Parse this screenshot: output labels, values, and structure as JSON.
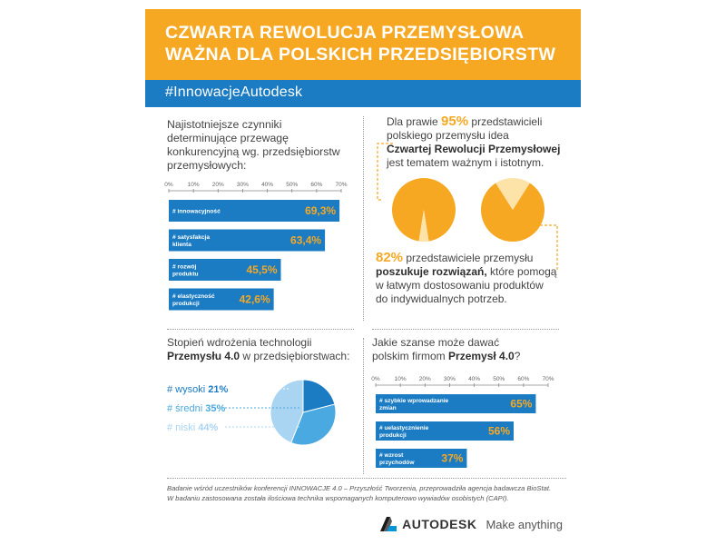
{
  "header": {
    "title_line1": "CZWARTA REWOLUCJA PRZEMYSŁOWA",
    "title_line2": "WAŻNA DLA POLSKICH PRZEDSIĘBIORSTW",
    "hashtag": "#InnowacjeAutodesk"
  },
  "section1": {
    "heading_lines": [
      "Najistotniejsze czynniki",
      "determinujące przewagę",
      "konkurencyjną wg. przedsiębiorstw",
      "przemysłowych:"
    ]
  },
  "section2": {
    "line1_pre": "Dla prawie ",
    "line1_pct": "95%",
    "line1_post": " przedstawicieli",
    "line2": "polskiego przemysłu idea",
    "line3_bold": "Czwartej Rewolucji Przemysłowej",
    "line4": "jest tematem ważnym i istotnym.",
    "pct2": "82%",
    "line5_post": " przedstawiciele przemysłu",
    "line6_bold": "poszukuje rozwiązań,",
    "line6_post": " które pomogą",
    "line7": "w łatwym dostosowaniu produktów",
    "line8": "do indywidualnych potrzeb."
  },
  "section3": {
    "heading_line1": "Stopień wdrożenia technologii",
    "heading_bold": "Przemysłu 4.0",
    "heading_post": " w przedsiębiorstwach:"
  },
  "section4": {
    "heading_line1": "Jakie szanse może dawać",
    "heading_pre": "polskim firmom ",
    "heading_bold": "Przemysł 4.0",
    "heading_post": "?"
  },
  "chart_data": [
    {
      "type": "bar",
      "orientation": "horizontal",
      "xlim": [
        0,
        70
      ],
      "ticks": [
        "0%",
        "10%",
        "20%",
        "30%",
        "40%",
        "50%",
        "60%",
        "70%"
      ],
      "categories": [
        "# innowacyjność",
        "# satysfakcja klienta",
        "# rozwój produktu",
        "# elastyczność produkcji"
      ],
      "category_lines": [
        [
          "# innowacyjność"
        ],
        [
          "# satysfakcja",
          "klienta"
        ],
        [
          "# rozwój",
          "produktu"
        ],
        [
          "# elastyczność",
          "produkcji"
        ]
      ],
      "values": [
        69.3,
        63.4,
        45.5,
        42.6
      ],
      "value_labels": [
        "69,3%",
        "63,4%",
        "45,5%",
        "42,6%"
      ],
      "bar_color": "#1b7cc3",
      "value_color": "#f7a823"
    },
    {
      "type": "pie",
      "values": [
        95,
        5
      ],
      "color": "#f7a823",
      "highlight_color": "#fde3a8"
    },
    {
      "type": "pie",
      "values": [
        82,
        18
      ],
      "color": "#f7a823",
      "highlight_color": "#fde3a8"
    },
    {
      "type": "pie",
      "categories": [
        "# wysoki",
        "# średni",
        "# niski"
      ],
      "values": [
        21,
        35,
        44
      ],
      "value_labels": [
        "21%",
        "35%",
        "44%"
      ],
      "colors": [
        "#1b7cc3",
        "#4aa9e0",
        "#a9d4f2"
      ]
    },
    {
      "type": "bar",
      "orientation": "horizontal",
      "xlim": [
        0,
        70
      ],
      "ticks": [
        "0%",
        "10%",
        "20%",
        "30%",
        "40%",
        "50%",
        "60%",
        "70%"
      ],
      "categories": [
        "# szybkie wprowadzanie zmian",
        "# uelastycznienie produkcji",
        "# wzrost przychodów"
      ],
      "category_lines": [
        [
          "# szybkie wprowadzanie",
          "zmian"
        ],
        [
          "# uelastycznienie",
          "produkcji"
        ],
        [
          "# wzrost",
          "przychodów"
        ]
      ],
      "values": [
        65,
        56,
        37
      ],
      "value_labels": [
        "65%",
        "56%",
        "37%"
      ],
      "bar_color": "#1b7cc3",
      "value_color": "#f7a823"
    }
  ],
  "footnote": {
    "line1": "Badanie wśród uczestników konferencji INNOWACJE 4.0 – Przyszłość Tworzenia, przeprowadziła agencja badawcza BioStat.",
    "line2": "W badaniu zastosowana została ilościowa technika wspomaganych komputerowo wywiadów osobistych (CAPI)."
  },
  "footer": {
    "brand": "AUTODESK",
    "tagline": "Make anything",
    "logo_icon": "autodesk-a-logo"
  }
}
